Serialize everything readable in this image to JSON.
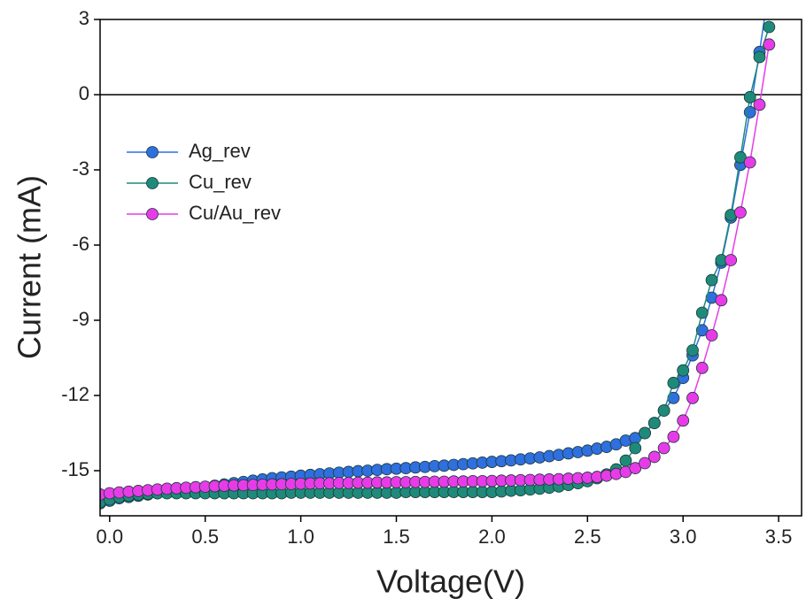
{
  "chart_data": {
    "type": "scatter-line",
    "x_label": "Voltage(V)",
    "y_label": "Current (mA)",
    "xlim": [
      -0.05,
      3.62
    ],
    "ylim": [
      -16.8,
      3
    ],
    "xticks": [
      {
        "value": 0,
        "label": "0.0"
      },
      0.5,
      {
        "value": 1,
        "label": "1.0"
      },
      1.5,
      {
        "value": 2,
        "label": "2.0"
      },
      2.5,
      {
        "value": 3,
        "label": "3.0"
      },
      3.5
    ],
    "yticks": [
      3,
      0,
      -3,
      -6,
      -9,
      -12,
      -15
    ],
    "zero_line": true,
    "legend": "upper left",
    "x": [
      -0.05,
      0,
      0.05,
      0.1,
      0.15,
      0.2,
      0.25,
      0.3,
      0.35,
      0.4,
      0.45,
      0.5,
      0.55,
      0.6,
      0.65,
      0.7,
      0.75,
      0.8,
      0.85,
      0.9,
      0.95,
      1,
      1.05,
      1.1,
      1.15,
      1.2,
      1.25,
      1.3,
      1.35,
      1.4,
      1.45,
      1.5,
      1.55,
      1.6,
      1.65,
      1.7,
      1.75,
      1.8,
      1.85,
      1.9,
      1.95,
      2,
      2.05,
      2.1,
      2.15,
      2.2,
      2.25,
      2.3,
      2.35,
      2.4,
      2.45,
      2.5,
      2.55,
      2.6,
      2.65,
      2.7,
      2.75,
      2.8,
      2.85,
      2.9,
      2.95,
      3,
      3.05,
      3.1,
      3.15,
      3.2,
      3.25,
      3.3,
      3.35,
      3.4,
      3.45
    ],
    "series": [
      {
        "name": "Ag_rev",
        "color": "#2f6fde",
        "values": [
          -16.3,
          -16.2,
          -16.1,
          -16.05,
          -16.0,
          -15.95,
          -15.9,
          -15.85,
          -15.8,
          -15.75,
          -15.7,
          -15.65,
          -15.6,
          -15.55,
          -15.5,
          -15.45,
          -15.4,
          -15.35,
          -15.3,
          -15.27,
          -15.24,
          -15.2,
          -15.17,
          -15.14,
          -15.11,
          -15.08,
          -15.05,
          -15.02,
          -15.0,
          -14.97,
          -14.94,
          -14.92,
          -14.9,
          -14.87,
          -14.85,
          -14.82,
          -14.8,
          -14.77,
          -14.74,
          -14.71,
          -14.68,
          -14.65,
          -14.62,
          -14.59,
          -14.55,
          -14.51,
          -14.47,
          -14.42,
          -14.37,
          -14.31,
          -14.26,
          -14.2,
          -14.12,
          -14.05,
          -13.95,
          -13.8,
          -13.7,
          -13.5,
          -13.1,
          -12.6,
          -12.1,
          -11.3,
          -10.4,
          -9.4,
          -8.1,
          -6.7,
          -4.9,
          -2.8,
          -0.7,
          1.7,
          4.3
        ]
      },
      {
        "name": "Cu_rev",
        "color": "#1f8a7a",
        "values": [
          -16.25,
          -16.15,
          -16.05,
          -16.0,
          -15.95,
          -15.92,
          -15.9,
          -15.9,
          -15.9,
          -15.9,
          -15.9,
          -15.9,
          -15.9,
          -15.9,
          -15.9,
          -15.9,
          -15.9,
          -15.9,
          -15.9,
          -15.9,
          -15.88,
          -15.88,
          -15.88,
          -15.88,
          -15.88,
          -15.88,
          -15.88,
          -15.88,
          -15.88,
          -15.88,
          -15.88,
          -15.88,
          -15.85,
          -15.85,
          -15.85,
          -15.85,
          -15.85,
          -15.85,
          -15.85,
          -15.85,
          -15.85,
          -15.85,
          -15.83,
          -15.8,
          -15.78,
          -15.75,
          -15.72,
          -15.68,
          -15.63,
          -15.57,
          -15.5,
          -15.42,
          -15.3,
          -15.15,
          -14.95,
          -14.6,
          -14.1,
          -13.5,
          -13.1,
          -12.6,
          -11.5,
          -11.0,
          -10.2,
          -8.7,
          -7.4,
          -6.6,
          -4.8,
          -2.5,
          -0.1,
          1.5,
          2.7
        ]
      },
      {
        "name": "Cu/Au_rev",
        "color": "#e83be8",
        "values": [
          -15.95,
          -15.9,
          -15.87,
          -15.84,
          -15.81,
          -15.78,
          -15.75,
          -15.72,
          -15.7,
          -15.68,
          -15.66,
          -15.64,
          -15.62,
          -15.6,
          -15.59,
          -15.58,
          -15.57,
          -15.56,
          -15.55,
          -15.54,
          -15.53,
          -15.52,
          -15.51,
          -15.5,
          -15.5,
          -15.49,
          -15.49,
          -15.48,
          -15.48,
          -15.47,
          -15.47,
          -15.46,
          -15.46,
          -15.45,
          -15.45,
          -15.44,
          -15.44,
          -15.43,
          -15.43,
          -15.42,
          -15.42,
          -15.41,
          -15.4,
          -15.39,
          -15.38,
          -15.37,
          -15.36,
          -15.35,
          -15.34,
          -15.32,
          -15.3,
          -15.28,
          -15.25,
          -15.2,
          -15.13,
          -15.05,
          -14.9,
          -14.7,
          -14.45,
          -14.1,
          -13.65,
          -13.0,
          -12.1,
          -10.9,
          -9.6,
          -8.2,
          -6.6,
          -4.7,
          -2.7,
          -0.4,
          2.0
        ]
      }
    ]
  }
}
